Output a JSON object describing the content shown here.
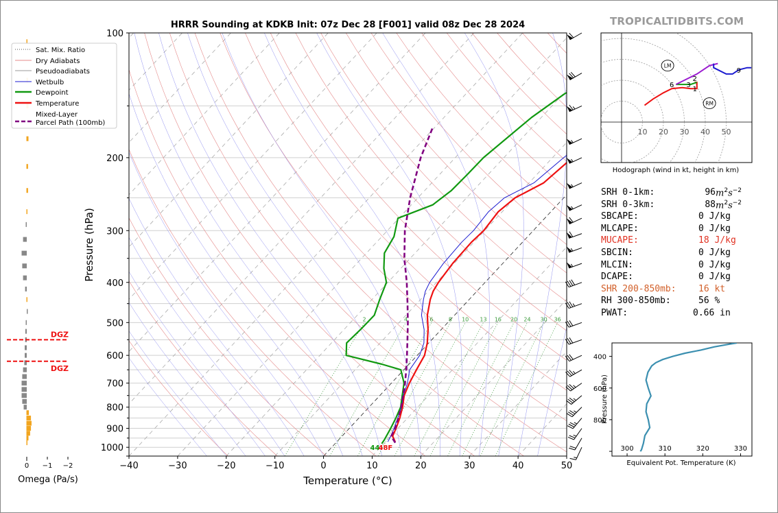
{
  "watermark": "TROPICALTIDBITS.COM",
  "chart_data": [
    {
      "id": "skewt",
      "type": "line",
      "title": "HRRR Sounding at KDKB Init: 07z Dec 28 [F001] valid 08z Dec 28 2024",
      "xlabel": "Temperature (°C)",
      "ylabel": "Pressure (hPa)",
      "xlim": [
        -40,
        50
      ],
      "ylim": [
        1050,
        100
      ],
      "y_scale": "log",
      "x_ticks": [
        "−40",
        "−30",
        "−20",
        "−10",
        "0",
        "10",
        "20",
        "30",
        "40",
        "50"
      ],
      "x_tick_values": [
        -40,
        -30,
        -20,
        -10,
        0,
        10,
        20,
        30,
        40,
        50
      ],
      "y_tick_values": [
        100,
        200,
        300,
        400,
        500,
        600,
        700,
        800,
        900,
        1000
      ],
      "legend": {
        "placement": "top-left",
        "entries": [
          {
            "label": "Sat. Mix. Ratio",
            "color": "#555555",
            "style": "dotted"
          },
          {
            "label": "Dry Adiabats",
            "color": "#e58a8a",
            "style": "solid"
          },
          {
            "label": "Pseudoadiabats",
            "color": "#9a9a9a",
            "style": "solid"
          },
          {
            "label": "Wetbulb",
            "color": "#1a1ad0",
            "style": "solid"
          },
          {
            "label": "Dewpoint",
            "color": "#119911",
            "style": "solid"
          },
          {
            "label": "Temperature",
            "color": "#ee1111",
            "style": "solid"
          },
          {
            "label": "Mixed-Layer\nParcel Path (100mb)",
            "color": "#800080",
            "style": "dashed"
          }
        ]
      },
      "mixing_ratio_labels": [
        "2",
        "4",
        "6",
        "8",
        "10",
        "13",
        "16",
        "20",
        "24",
        "30",
        "36"
      ],
      "mixing_ratio_values": [
        2,
        4,
        6,
        8,
        10,
        13,
        16,
        20,
        24,
        30,
        36
      ],
      "series": [
        {
          "name": "Temperature",
          "color": "#ee1111",
          "points": [
            [
              970,
              12.0
            ],
            [
              940,
              10.4
            ],
            [
              900,
              9.6
            ],
            [
              850,
              8.4
            ],
            [
              800,
              6.9
            ],
            [
              750,
              5.0
            ],
            [
              700,
              3.7
            ],
            [
              650,
              2.6
            ],
            [
              600,
              1.5
            ],
            [
              560,
              -0.3
            ],
            [
              520,
              -2.7
            ],
            [
              480,
              -5.6
            ],
            [
              440,
              -8.0
            ],
            [
              420,
              -9.0
            ],
            [
              400,
              -9.6
            ],
            [
              360,
              -10.3
            ],
            [
              320,
              -10.5
            ],
            [
              300,
              -10.2
            ],
            [
              270,
              -10.8
            ],
            [
              250,
              -10.0
            ],
            [
              230,
              -7.0
            ],
            [
              200,
              -5.9
            ],
            [
              150,
              -2.6
            ],
            [
              120,
              -0.3
            ],
            [
              100,
              1.9
            ]
          ]
        },
        {
          "name": "Dewpoint",
          "color": "#119911",
          "points": [
            [
              980,
              9.6
            ],
            [
              960,
              9.4
            ],
            [
              900,
              8.5
            ],
            [
              850,
              7.6
            ],
            [
              800,
              6.5
            ],
            [
              750,
              4.6
            ],
            [
              700,
              2.6
            ],
            [
              650,
              -0.6
            ],
            [
              630,
              -5.6
            ],
            [
              600,
              -14.6
            ],
            [
              560,
              -16.9
            ],
            [
              520,
              -16.6
            ],
            [
              480,
              -16.5
            ],
            [
              440,
              -18.4
            ],
            [
              400,
              -20.3
            ],
            [
              370,
              -23.5
            ],
            [
              340,
              -26.3
            ],
            [
              310,
              -27.5
            ],
            [
              280,
              -30.2
            ],
            [
              260,
              -25.6
            ],
            [
              240,
              -24.5
            ],
            [
              220,
              -24.3
            ],
            [
              200,
              -24.2
            ],
            [
              160,
              -22.0
            ],
            [
              140,
              -19.7
            ],
            [
              120,
              -12.7
            ],
            [
              100,
              -7.3
            ]
          ]
        },
        {
          "name": "Wetbulb",
          "color": "#1a1ad0",
          "points": [
            [
              970,
              10.5
            ],
            [
              940,
              10.0
            ],
            [
              900,
              9.2
            ],
            [
              850,
              8.0
            ],
            [
              800,
              6.7
            ],
            [
              750,
              4.8
            ],
            [
              700,
              3.3
            ],
            [
              650,
              1.2
            ],
            [
              600,
              0.5
            ],
            [
              560,
              -1.0
            ],
            [
              520,
              -3.5
            ],
            [
              480,
              -6.8
            ],
            [
              440,
              -9.4
            ],
            [
              420,
              -10.6
            ],
            [
              400,
              -11.4
            ],
            [
              360,
              -12.2
            ],
            [
              320,
              -12.5
            ],
            [
              300,
              -12.3
            ],
            [
              270,
              -12.8
            ],
            [
              250,
              -12.2
            ],
            [
              230,
              -9.0
            ],
            [
              200,
              -7.7
            ],
            [
              150,
              -4.2
            ],
            [
              120,
              -1.5
            ],
            [
              100,
              1.1
            ]
          ]
        },
        {
          "name": "Mixed-Layer Parcel Path (100mb)",
          "color": "#800080",
          "points": [
            [
              975,
              12.2
            ],
            [
              940,
              10.1
            ],
            [
              900,
              9.4
            ],
            [
              850,
              8.1
            ],
            [
              800,
              6.6
            ],
            [
              750,
              4.8
            ],
            [
              700,
              2.8
            ],
            [
              650,
              0.5
            ],
            [
              600,
              -2.1
            ],
            [
              550,
              -5.0
            ],
            [
              500,
              -8.2
            ],
            [
              450,
              -11.9
            ],
            [
              400,
              -16.1
            ],
            [
              350,
              -21.2
            ],
            [
              300,
              -26.4
            ],
            [
              250,
              -31.6
            ],
            [
              200,
              -37.1
            ],
            [
              170,
              -40.3
            ]
          ]
        }
      ],
      "surface_dewpoint_label": "44",
      "surface_temperature_label": "48F",
      "wind_barbs": [
        {
          "p": 100,
          "dir": 240,
          "kt": 60
        },
        {
          "p": 125,
          "dir": 240,
          "kt": 70
        },
        {
          "p": 150,
          "dir": 245,
          "kt": 65
        },
        {
          "p": 180,
          "dir": 245,
          "kt": 55
        },
        {
          "p": 200,
          "dir": 245,
          "kt": 55
        },
        {
          "p": 230,
          "dir": 245,
          "kt": 55
        },
        {
          "p": 260,
          "dir": 245,
          "kt": 55
        },
        {
          "p": 280,
          "dir": 245,
          "kt": 60
        },
        {
          "p": 305,
          "dir": 250,
          "kt": 60
        },
        {
          "p": 330,
          "dir": 250,
          "kt": 55
        },
        {
          "p": 360,
          "dir": 250,
          "kt": 55
        },
        {
          "p": 400,
          "dir": 250,
          "kt": 40
        },
        {
          "p": 450,
          "dir": 250,
          "kt": 35
        },
        {
          "p": 500,
          "dir": 250,
          "kt": 30
        },
        {
          "p": 550,
          "dir": 250,
          "kt": 30
        },
        {
          "p": 600,
          "dir": 245,
          "kt": 30
        },
        {
          "p": 650,
          "dir": 240,
          "kt": 35
        },
        {
          "p": 700,
          "dir": 235,
          "kt": 35
        },
        {
          "p": 750,
          "dir": 230,
          "kt": 35
        },
        {
          "p": 800,
          "dir": 225,
          "kt": 35
        },
        {
          "p": 850,
          "dir": 220,
          "kt": 35
        },
        {
          "p": 900,
          "dir": 215,
          "kt": 25
        },
        {
          "p": 950,
          "dir": 210,
          "kt": 20
        },
        {
          "p": 1000,
          "dir": 205,
          "kt": 15
        }
      ]
    },
    {
      "id": "omega",
      "type": "bar",
      "xlabel": "Omega (Pa/s)",
      "x_ticks": [
        "0",
        "−1",
        "−2"
      ],
      "x_tick_values": [
        0,
        -1,
        -2
      ],
      "dgz_label": "DGZ",
      "dgz_pressures": [
        550,
        620
      ],
      "values": [
        {
          "p": 105,
          "w": 0.05
        },
        {
          "p": 130,
          "w": 0.08
        },
        {
          "p": 150,
          "w": 0.1
        },
        {
          "p": 180,
          "w": 0.1
        },
        {
          "p": 210,
          "w": 0.08
        },
        {
          "p": 240,
          "w": 0.08
        },
        {
          "p": 270,
          "w": 0.05
        },
        {
          "p": 290,
          "w": -0.05
        },
        {
          "p": 315,
          "w": -0.18
        },
        {
          "p": 340,
          "w": -0.25
        },
        {
          "p": 365,
          "w": -0.22
        },
        {
          "p": 390,
          "w": -0.18
        },
        {
          "p": 415,
          "w": -0.08
        },
        {
          "p": 440,
          "w": 0.05
        },
        {
          "p": 470,
          "w": 0.0
        },
        {
          "p": 500,
          "w": -0.05
        },
        {
          "p": 525,
          "w": -0.07
        },
        {
          "p": 550,
          "w": -0.08
        },
        {
          "p": 575,
          "w": -0.1
        },
        {
          "p": 600,
          "w": -0.1
        },
        {
          "p": 625,
          "w": -0.12
        },
        {
          "p": 650,
          "w": -0.18
        },
        {
          "p": 675,
          "w": -0.22
        },
        {
          "p": 700,
          "w": -0.25
        },
        {
          "p": 725,
          "w": -0.25
        },
        {
          "p": 750,
          "w": -0.25
        },
        {
          "p": 775,
          "w": -0.22
        },
        {
          "p": 800,
          "w": -0.15
        },
        {
          "p": 825,
          "w": 0.12
        },
        {
          "p": 850,
          "w": 0.22
        },
        {
          "p": 875,
          "w": 0.25
        },
        {
          "p": 900,
          "w": 0.22
        },
        {
          "p": 925,
          "w": 0.18
        },
        {
          "p": 950,
          "w": 0.1
        },
        {
          "p": 975,
          "w": 0.05
        }
      ]
    },
    {
      "id": "hodograph",
      "type": "line",
      "xlabel": "Hodograph (wind in kt, height in km)",
      "ring_labels": [
        "10",
        "20",
        "30",
        "40",
        "50"
      ],
      "ring_values": [
        10,
        20,
        30,
        40,
        50
      ],
      "storm_motion_labels": {
        "left": "LM",
        "right": "RM"
      },
      "storm_left_uv": [
        22,
        27
      ],
      "storm_right_uv": [
        42,
        9
      ],
      "height_labels": [
        {
          "text": "1",
          "u": 35,
          "v": 16
        },
        {
          "text": "2",
          "u": 35,
          "v": 21
        },
        {
          "text": "3",
          "u": 32,
          "v": 18
        },
        {
          "text": "6",
          "u": 24,
          "v": 18
        },
        {
          "text": "9",
          "u": 56,
          "v": 25
        }
      ],
      "segments": [
        {
          "color": "#ee1111",
          "uv": [
            [
              11,
              8
            ],
            [
              15,
              11
            ],
            [
              20,
              14
            ],
            [
              24,
              16
            ],
            [
              29,
              16.5
            ],
            [
              33,
              16
            ],
            [
              36,
              16
            ],
            [
              36,
              19
            ],
            [
              35,
              19
            ]
          ]
        },
        {
          "color": "#119911",
          "uv": [
            [
              36,
              19
            ],
            [
              33,
              18
            ],
            [
              29,
              18
            ],
            [
              26,
              18
            ]
          ]
        },
        {
          "color": "#9a1ad0",
          "uv": [
            [
              26,
              18
            ],
            [
              30,
              20
            ],
            [
              36,
              23
            ],
            [
              42,
              27
            ],
            [
              46,
              28
            ]
          ]
        },
        {
          "color": "#1a1ad0",
          "uv": [
            [
              44,
              28
            ],
            [
              44,
              26
            ],
            [
              50,
              23
            ],
            [
              53,
              23
            ],
            [
              56,
              25
            ],
            [
              60,
              26
            ],
            [
              62,
              26
            ]
          ]
        }
      ]
    },
    {
      "id": "theta_e",
      "type": "line",
      "xlabel": "Equivalent Pot. Temperature (K)",
      "ylabel": "Pressure (hPa)",
      "xlim": [
        296,
        333
      ],
      "ylim": [
        1030,
        315
      ],
      "x_ticks": [
        "300",
        "310",
        "320",
        "330"
      ],
      "x_tick_values": [
        300,
        310,
        320,
        330
      ],
      "y_ticks": [
        "400",
        "600",
        "800"
      ],
      "y_tick_values": [
        400,
        600,
        800
      ],
      "color": "#3b8fb0",
      "points": [
        [
          1000,
          303.5
        ],
        [
          990,
          303.8
        ],
        [
          950,
          304.3
        ],
        [
          900,
          304.7
        ],
        [
          850,
          306.0
        ],
        [
          800,
          305.6
        ],
        [
          750,
          305.0
        ],
        [
          700,
          305.2
        ],
        [
          650,
          306.3
        ],
        [
          600,
          305.6
        ],
        [
          550,
          305.0
        ],
        [
          500,
          305.5
        ],
        [
          460,
          306.5
        ],
        [
          440,
          307.6
        ],
        [
          420,
          309.4
        ],
        [
          400,
          312.1
        ],
        [
          380,
          315.3
        ],
        [
          360,
          319.5
        ],
        [
          340,
          323.0
        ],
        [
          325,
          326.5
        ],
        [
          315,
          329.0
        ]
      ]
    }
  ],
  "indices": [
    {
      "label": "SRH 0-1km:",
      "value": "96",
      "unit": "m",
      "unit_exp": "2",
      "unit_rest": "s",
      "unit_exp2": "−2",
      "color": "#000000"
    },
    {
      "label": "SRH 0-3km:",
      "value": "88",
      "unit": "m",
      "unit_exp": "2",
      "unit_rest": "s",
      "unit_exp2": "−2",
      "color": "#000000"
    },
    {
      "label": "SBCAPE:",
      "value": "0 J/kg",
      "color": "#000000"
    },
    {
      "label": "MLCAPE:",
      "value": "0 J/kg",
      "color": "#000000"
    },
    {
      "label": "MUCAPE:",
      "value": "18 J/kg",
      "color": "#e03020"
    },
    {
      "label": "SBCIN:",
      "value": "0 J/kg",
      "color": "#000000"
    },
    {
      "label": "MLCIN:",
      "value": "0 J/kg",
      "color": "#000000"
    },
    {
      "label": "DCAPE:",
      "value": "0 J/kg",
      "color": "#000000"
    },
    {
      "label": "SHR 200-850mb:",
      "value": "16 kt",
      "color": "#d2602a"
    },
    {
      "label": "RH 300-850mb:",
      "value": "56 %",
      "color": "#000000"
    },
    {
      "label": "PWAT:",
      "value": "0.66 in",
      "color": "#000000"
    }
  ]
}
